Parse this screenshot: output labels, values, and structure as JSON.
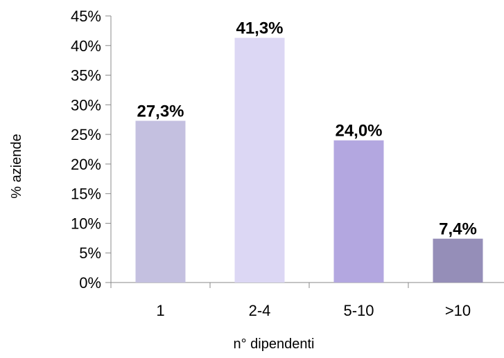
{
  "chart_data": {
    "type": "bar",
    "categories": [
      "1",
      "2-4",
      "5-10",
      ">10"
    ],
    "values": [
      27.3,
      41.3,
      24.0,
      7.4
    ],
    "data_labels": [
      "27,3%",
      "41,3%",
      "24,0%",
      "7,4%"
    ],
    "bar_colors": [
      "#c4c0e0",
      "#dcd7f4",
      "#b3a7e0",
      "#958eb8"
    ],
    "xlabel": "n° dipendenti",
    "ylabel": "% aziende",
    "ylim": [
      0,
      45
    ],
    "yticks": [
      0,
      5,
      10,
      15,
      20,
      25,
      30,
      35,
      40,
      45
    ],
    "ytick_labels": [
      "0%",
      "5%",
      "10%",
      "15%",
      "20%",
      "25%",
      "30%",
      "35%",
      "40%",
      "45%"
    ],
    "grid": false,
    "legend": "none"
  }
}
